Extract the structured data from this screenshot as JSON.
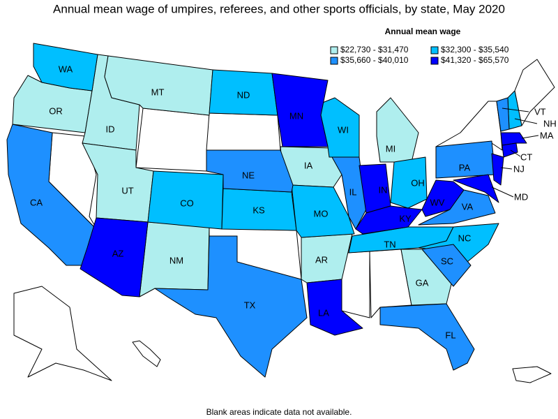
{
  "title": "Annual mean wage of umpires, referees, and other sports officials, by state, May 2020",
  "legend_title": "Annual mean wage",
  "legend": [
    {
      "label": "$22,730 - $31,470",
      "color": "#afeeee",
      "states": [
        "OR",
        "ID",
        "MT",
        "UT",
        "NM",
        "IA",
        "AR",
        "MI",
        "GA"
      ]
    },
    {
      "label": "$32,300 - $35,540",
      "color": "#00bfff",
      "states": [
        "WA",
        "ND",
        "WI",
        "CO",
        "KS",
        "MO",
        "OH",
        "TN",
        "NC",
        "NH"
      ]
    },
    {
      "label": "$35,660 - $40,010",
      "color": "#1e90ff",
      "states": [
        "CA",
        "NE",
        "TX",
        "IL",
        "PA",
        "VA",
        "SC",
        "FL",
        "VT"
      ]
    },
    {
      "label": "$41,320 - $65,570",
      "color": "#0000ff",
      "states": [
        "MN",
        "AZ",
        "IN",
        "KY",
        "WV",
        "LA",
        "MD",
        "NJ",
        "MA",
        "CT"
      ]
    }
  ],
  "footnote": "Blank areas indicate data not available."
}
